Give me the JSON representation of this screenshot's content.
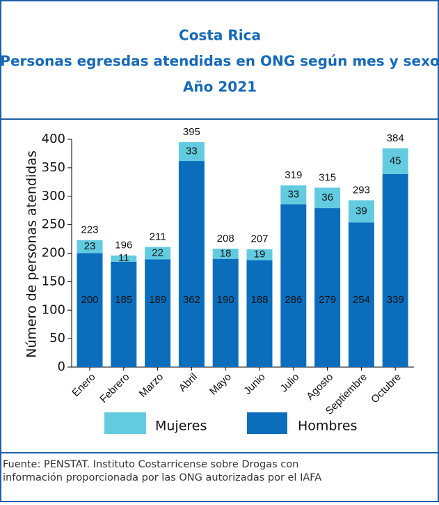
{
  "chart_data": {
    "type": "stacked_bar",
    "title": [
      "Costa Rica",
      "Personas egresdas atendidas en ONG según mes y sexo",
      "Año 2021"
    ],
    "y_label": "Número de personas atendidas",
    "categories": [
      "Enero",
      "Febrero",
      "Marzo",
      "Abril",
      "Mayo",
      "Junio",
      "Julio",
      "Agosto",
      "Septiembre",
      "Octubre"
    ],
    "series": [
      {
        "name": "Hombres",
        "color": "#0a6ebd",
        "values": [
          200,
          185,
          189,
          362,
          190,
          188,
          286,
          279,
          254,
          339
        ]
      },
      {
        "name": "Mujeres",
        "color": "#62cbe0",
        "values": [
          23,
          11,
          22,
          33,
          18,
          19,
          33,
          36,
          39,
          45
        ]
      }
    ],
    "totals": [
      223,
      196,
      211,
      395,
      208,
      207,
      319,
      315,
      293,
      384
    ],
    "ylim": [
      0,
      400
    ],
    "yticks": [
      0,
      50,
      100,
      150,
      200,
      250,
      300,
      350,
      400
    ],
    "source": [
      "Fuente: PENSTAT. Instituto Costarricense sobre Drogas con",
      "información proporcionada por las ONG autorizadas por el IAFA"
    ]
  }
}
